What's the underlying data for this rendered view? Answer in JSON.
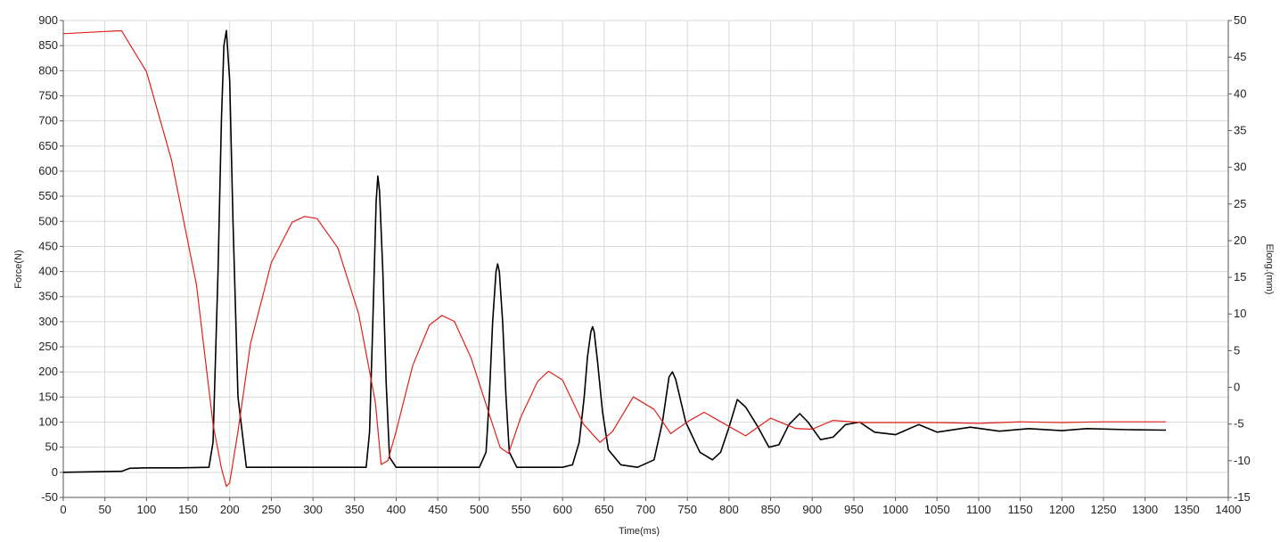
{
  "chart_data": {
    "type": "line",
    "title": "",
    "xlabel": "Time(ms)",
    "ylabel_left": "Force(N)",
    "ylabel_right": "Elong.(mm)",
    "xlim": [
      0,
      1400
    ],
    "ylim_left": [
      -50,
      900
    ],
    "ylim_right": [
      -15,
      50
    ],
    "x_ticks": [
      0,
      50,
      100,
      150,
      200,
      250,
      300,
      350,
      400,
      450,
      500,
      550,
      600,
      650,
      700,
      750,
      800,
      850,
      900,
      950,
      1000,
      1050,
      1100,
      1150,
      1200,
      1250,
      1300,
      1350,
      1400
    ],
    "y_left_ticks": [
      -50,
      0,
      50,
      100,
      150,
      200,
      250,
      300,
      350,
      400,
      450,
      500,
      550,
      600,
      650,
      700,
      750,
      800,
      850,
      900
    ],
    "y_right_ticks": [
      -15,
      -10,
      -5,
      0,
      5,
      10,
      15,
      20,
      25,
      30,
      35,
      40,
      45,
      50
    ],
    "grid": true,
    "legend": "none",
    "series": [
      {
        "axis": "left",
        "color": "#000000",
        "x": [
          0,
          70,
          80,
          100,
          140,
          175,
          180,
          186,
          190,
          193,
          196,
          200,
          204,
          210,
          220,
          250,
          300,
          340,
          364,
          368,
          372,
          376,
          378,
          380,
          384,
          388,
          392,
          400,
          450,
          500,
          508,
          512,
          516,
          520,
          522,
          524,
          528,
          532,
          536,
          545,
          600,
          612,
          620,
          626,
          630,
          634,
          636,
          638,
          642,
          648,
          655,
          670,
          690,
          710,
          720,
          728,
          732,
          736,
          748,
          765,
          780,
          790,
          800,
          810,
          820,
          835,
          848,
          860,
          872,
          885,
          895,
          910,
          925,
          940,
          957,
          975,
          1000,
          1028,
          1050,
          1090,
          1125,
          1160,
          1200,
          1230,
          1280,
          1325
        ],
        "y": [
          0,
          2,
          8,
          9,
          9,
          10,
          60,
          400,
          700,
          850,
          880,
          780,
          500,
          150,
          10,
          10,
          10,
          10,
          10,
          80,
          300,
          540,
          590,
          560,
          400,
          180,
          30,
          10,
          10,
          10,
          40,
          150,
          300,
          400,
          415,
          400,
          300,
          150,
          40,
          10,
          10,
          15,
          60,
          150,
          230,
          280,
          290,
          280,
          220,
          120,
          45,
          15,
          10,
          25,
          100,
          190,
          200,
          185,
          100,
          40,
          25,
          40,
          90,
          145,
          130,
          90,
          50,
          55,
          95,
          117,
          100,
          65,
          70,
          95,
          100,
          80,
          75,
          95,
          80,
          90,
          82,
          87,
          83,
          87,
          85,
          84
        ]
      },
      {
        "axis": "right",
        "color": "#e0201b",
        "x": [
          0,
          50,
          70,
          100,
          130,
          160,
          180,
          190,
          196,
          200,
          210,
          225,
          250,
          275,
          290,
          305,
          330,
          355,
          375,
          382,
          390,
          400,
          420,
          440,
          455,
          470,
          490,
          510,
          525,
          535,
          550,
          570,
          583,
          600,
          625,
          645,
          660,
          685,
          710,
          730,
          750,
          770,
          795,
          820,
          850,
          880,
          900,
          925,
          960,
          1000,
          1050,
          1100,
          1150,
          1200,
          1250,
          1300,
          1325
        ],
        "y": [
          48.2,
          48.5,
          48.6,
          43,
          31,
          14,
          -5,
          -11,
          -13.5,
          -13,
          -6,
          6,
          17,
          22.5,
          23.3,
          23,
          19,
          10,
          -2,
          -10.5,
          -10,
          -6,
          3,
          8.5,
          9.8,
          9,
          4,
          -3,
          -8.2,
          -9,
          -4,
          0.8,
          2.2,
          1,
          -5,
          -7.5,
          -6,
          -1.3,
          -3,
          -6.3,
          -4.7,
          -3.4,
          -5,
          -6.6,
          -4.2,
          -5.6,
          -5.7,
          -4.5,
          -4.8,
          -4.8,
          -4.8,
          -4.9,
          -4.7,
          -4.8,
          -4.7,
          -4.7,
          -4.7
        ]
      }
    ]
  }
}
